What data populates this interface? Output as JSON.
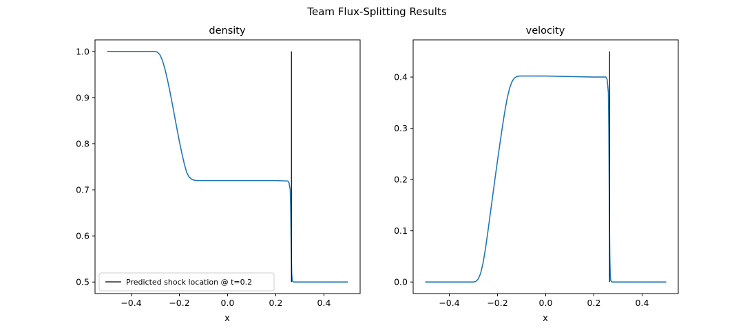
{
  "figure": {
    "title": "Team Flux-Splitting Results"
  },
  "chart_data": [
    {
      "type": "line",
      "title": "density",
      "xlabel": "x",
      "ylabel": "",
      "xlim": [
        -0.55,
        0.55
      ],
      "ylim": [
        0.475,
        1.025
      ],
      "xticks": [
        -0.4,
        -0.2,
        0.0,
        0.2,
        0.4
      ],
      "xtick_labels": [
        "−0.4",
        "−0.2",
        "0.0",
        "0.2",
        "0.4"
      ],
      "yticks": [
        0.5,
        0.6,
        0.7,
        0.8,
        0.9,
        1.0
      ],
      "ytick_labels": [
        "0.5",
        "0.6",
        "0.7",
        "0.8",
        "0.9",
        "1.0"
      ],
      "series_color": "#1f77b4",
      "series": [
        {
          "name": "",
          "x": [
            -0.5,
            -0.4,
            -0.3,
            -0.29,
            -0.28,
            -0.27,
            -0.26,
            -0.25,
            -0.24,
            -0.23,
            -0.22,
            -0.21,
            -0.2,
            -0.19,
            -0.18,
            -0.17,
            -0.16,
            -0.15,
            -0.14,
            -0.13,
            -0.12,
            -0.11,
            -0.1,
            0.0,
            0.1,
            0.2,
            0.25,
            0.255,
            0.26,
            0.262,
            0.264,
            0.266,
            0.268,
            0.27,
            0.275,
            0.28,
            0.3,
            0.4,
            0.5
          ],
          "y": [
            1.0,
            1.0,
            1.0,
            0.998,
            0.992,
            0.98,
            0.962,
            0.94,
            0.915,
            0.888,
            0.86,
            0.832,
            0.805,
            0.78,
            0.757,
            0.738,
            0.728,
            0.723,
            0.721,
            0.72,
            0.72,
            0.72,
            0.72,
            0.72,
            0.72,
            0.72,
            0.719,
            0.715,
            0.7,
            0.66,
            0.58,
            0.52,
            0.505,
            0.501,
            0.5,
            0.5,
            0.5,
            0.5,
            0.5
          ]
        }
      ],
      "shock_line": {
        "label": "Predicted shock location @ t=0.2",
        "x": 0.265,
        "y0": 0.5,
        "y1": 1.0
      },
      "legend": {
        "location": "lower-left"
      },
      "grid": false
    },
    {
      "type": "line",
      "title": "velocity",
      "xlabel": "x",
      "ylabel": "",
      "xlim": [
        -0.55,
        0.55
      ],
      "ylim": [
        -0.0225,
        0.4725
      ],
      "xticks": [
        -0.4,
        -0.2,
        0.0,
        0.2,
        0.4
      ],
      "xtick_labels": [
        "−0.4",
        "−0.2",
        "0.0",
        "0.2",
        "0.4"
      ],
      "yticks": [
        0.0,
        0.1,
        0.2,
        0.3,
        0.4
      ],
      "ytick_labels": [
        "0.0",
        "0.1",
        "0.2",
        "0.3",
        "0.4"
      ],
      "series_color": "#1f77b4",
      "series": [
        {
          "name": "",
          "x": [
            -0.5,
            -0.4,
            -0.3,
            -0.29,
            -0.28,
            -0.27,
            -0.26,
            -0.25,
            -0.24,
            -0.23,
            -0.22,
            -0.21,
            -0.2,
            -0.19,
            -0.18,
            -0.17,
            -0.16,
            -0.15,
            -0.14,
            -0.13,
            -0.12,
            -0.11,
            -0.1,
            0.0,
            0.1,
            0.2,
            0.25,
            0.255,
            0.26,
            0.262,
            0.264,
            0.266,
            0.268,
            0.27,
            0.275,
            0.28,
            0.3,
            0.4,
            0.5
          ],
          "y": [
            0.0,
            0.0,
            0.0,
            0.001,
            0.006,
            0.017,
            0.037,
            0.065,
            0.098,
            0.133,
            0.168,
            0.203,
            0.237,
            0.27,
            0.302,
            0.332,
            0.358,
            0.378,
            0.391,
            0.398,
            0.401,
            0.402,
            0.402,
            0.402,
            0.401,
            0.4,
            0.4,
            0.395,
            0.37,
            0.3,
            0.15,
            0.05,
            0.012,
            0.003,
            0.0,
            0.0,
            0.0,
            0.0,
            0.0
          ]
        }
      ],
      "shock_line": {
        "label": "",
        "x": 0.265,
        "y0": 0.0,
        "y1": 0.45
      },
      "grid": false
    }
  ]
}
